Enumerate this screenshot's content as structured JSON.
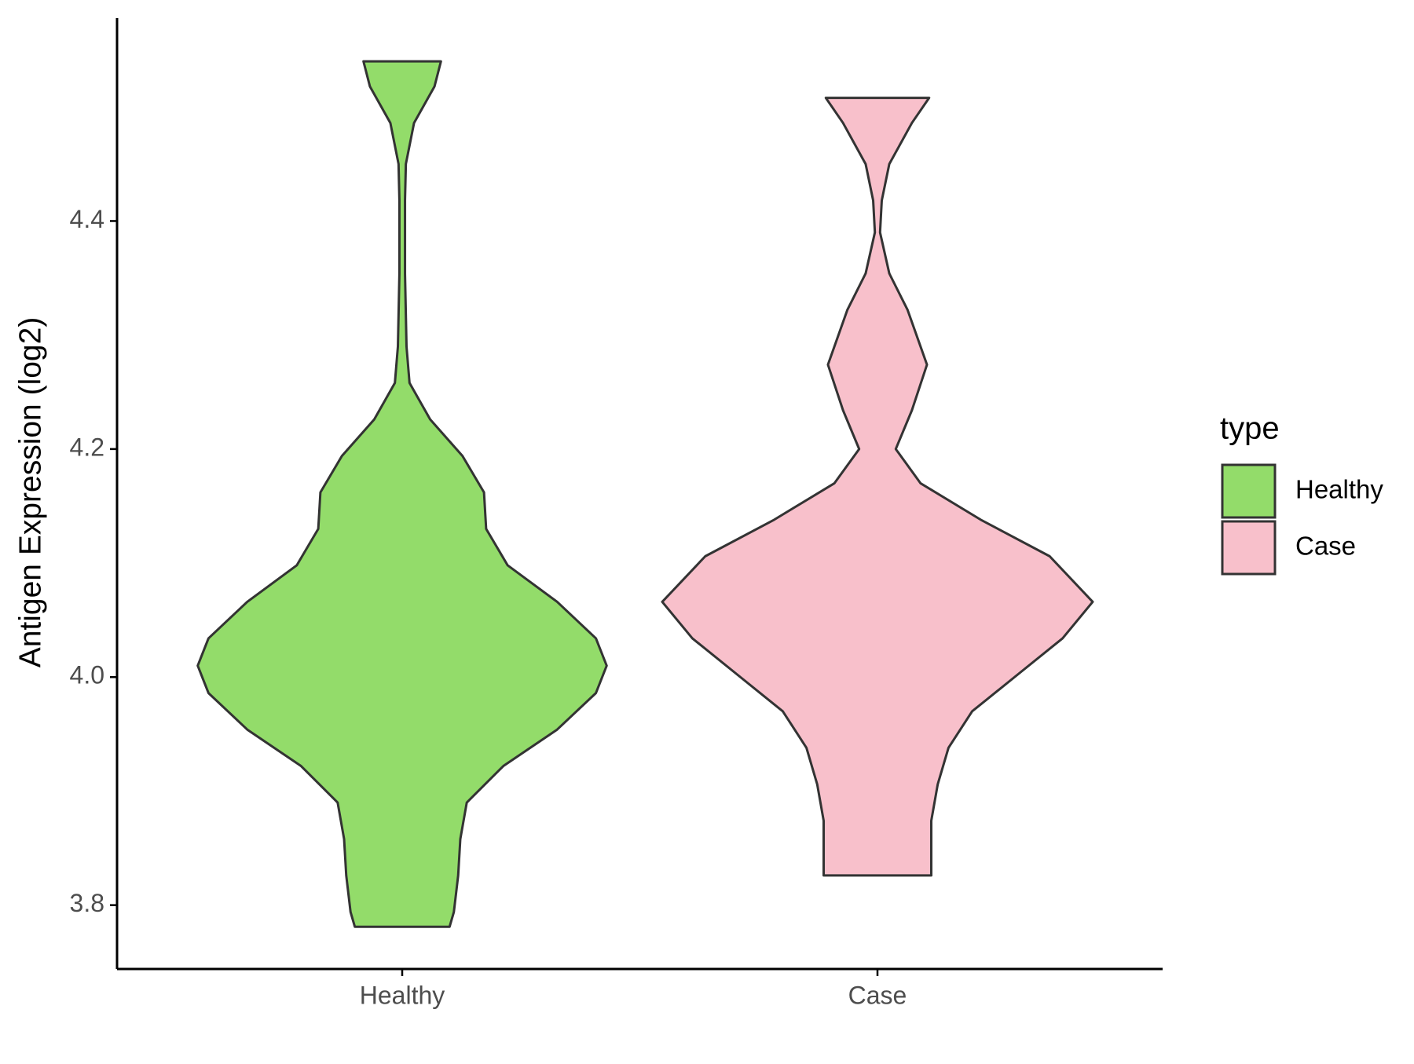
{
  "chart_data": {
    "type": "violin",
    "y_label": "Antigen Expression (log2)",
    "categories": [
      "Healthy",
      "Case"
    ],
    "legend_title": "type",
    "legend_position": "right",
    "ylim": [
      3.744,
      4.578
    ],
    "yticks": [
      3.8,
      {
        "value": 4,
        "label": "4.0"
      },
      4.2,
      4.4
    ],
    "series": [
      {
        "name": "Healthy",
        "color": "#93dc6a",
        "y": [
          4.54,
          4.518,
          4.486,
          4.45,
          4.418,
          4.354,
          4.29,
          4.258,
          4.226,
          4.194,
          4.162,
          4.13,
          4.098,
          4.066,
          4.034,
          4.01,
          3.986,
          3.954,
          3.922,
          3.89,
          3.858,
          3.826,
          3.794,
          3.781
        ],
        "density": [
          0.18,
          0.15,
          0.055,
          0.017,
          0.013,
          0.013,
          0.02,
          0.034,
          0.13,
          0.28,
          0.38,
          0.39,
          0.49,
          0.72,
          0.9,
          0.95,
          0.9,
          0.72,
          0.47,
          0.3,
          0.27,
          0.26,
          0.24,
          0.22
        ]
      },
      {
        "name": "Case",
        "color": "#f8c0cb",
        "y": [
          4.508,
          4.486,
          4.45,
          4.418,
          4.39,
          4.354,
          4.322,
          4.274,
          4.234,
          4.2,
          4.17,
          4.138,
          4.106,
          4.066,
          4.034,
          4.002,
          3.97,
          3.938,
          3.906,
          3.874,
          3.842,
          3.826
        ],
        "density": [
          0.24,
          0.16,
          0.055,
          0.02,
          0.012,
          0.055,
          0.14,
          0.23,
          0.16,
          0.085,
          0.2,
          0.48,
          0.8,
          1,
          0.86,
          0.65,
          0.44,
          0.33,
          0.28,
          0.25,
          0.25,
          0.25
        ]
      }
    ]
  }
}
